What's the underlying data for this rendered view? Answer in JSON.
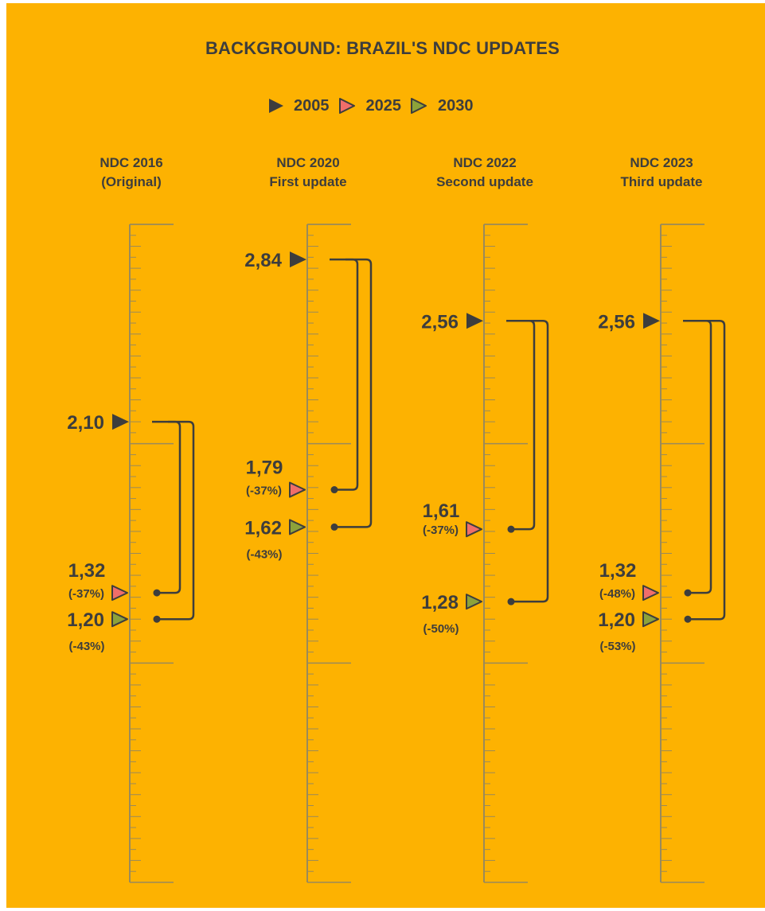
{
  "chart_data": {
    "type": "scale-markers",
    "title": "BACKGROUND: BRAZIL'S NDC UPDATES",
    "legend": [
      {
        "label": "2005",
        "color": "#3d3d3d"
      },
      {
        "label": "2025",
        "color": "#F06E6A"
      },
      {
        "label": "2030",
        "color": "#8DA23A"
      }
    ],
    "ndcs": [
      {
        "name": "NDC 2016",
        "subtitle": "(Original)",
        "v2005": 2.1,
        "v2005_label": "2,10",
        "v2025": 1.32,
        "v2025_label": "1,32",
        "v2025_pct": "(-37%)",
        "v2030": 1.2,
        "v2030_label": "1,20",
        "v2030_pct": "(-43%)"
      },
      {
        "name": "NDC 2020",
        "subtitle": "First update",
        "v2005": 2.84,
        "v2005_label": "2,84",
        "v2025": 1.79,
        "v2025_label": "1,79",
        "v2025_pct": "(-37%)",
        "v2030": 1.62,
        "v2030_label": "1,62",
        "v2030_pct": "(-43%)"
      },
      {
        "name": "NDC 2022",
        "subtitle": "Second update",
        "v2005": 2.56,
        "v2005_label": "2,56",
        "v2025": 1.61,
        "v2025_label": "1,61",
        "v2025_pct": "(-37%)",
        "v2030": 1.28,
        "v2030_label": "1,28",
        "v2030_pct": "(-50%)"
      },
      {
        "name": "NDC 2023",
        "subtitle": "Third update",
        "v2005": 2.56,
        "v2005_label": "2,56",
        "v2025": 1.32,
        "v2025_label": "1,32",
        "v2025_pct": "(-48%)",
        "v2030": 1.2,
        "v2030_label": "1,20",
        "v2030_pct": "(-53%)"
      }
    ],
    "scale": {
      "min": 0,
      "max": 3.0
    }
  },
  "colors": {
    "background": "#FDB201",
    "ink": "#3d3d3d",
    "ruler": "#9a8a5a"
  }
}
